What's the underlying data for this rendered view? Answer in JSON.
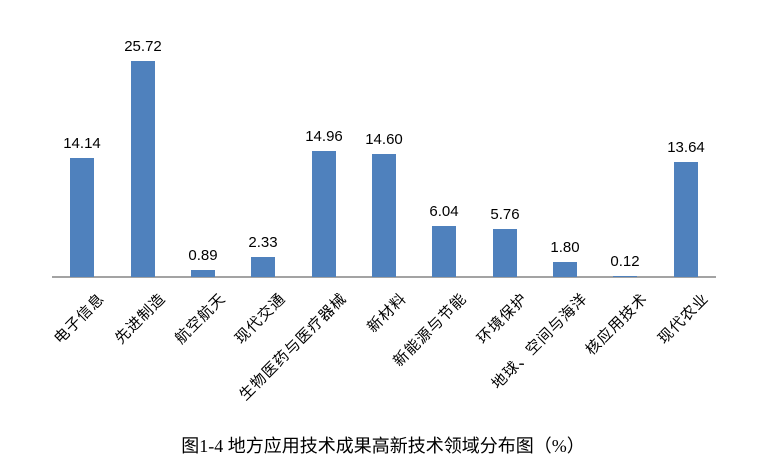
{
  "chart_data": {
    "type": "bar",
    "title": "图1-4 地方应用技术成果高新技术领域分布图（%）",
    "categories": [
      "电子信息",
      "先进制造",
      "航空航天",
      "现代交通",
      "生物医药与医疗器械",
      "新材料",
      "新能源与节能",
      "环境保护",
      "地球、空间与海洋",
      "核应用技术",
      "现代农业"
    ],
    "values": [
      14.14,
      25.72,
      0.89,
      2.33,
      14.96,
      14.6,
      6.04,
      5.76,
      1.8,
      0.12,
      13.64
    ],
    "value_labels": [
      "14.14",
      "25.72",
      "0.89",
      "2.33",
      "14.96",
      "14.60",
      "6.04",
      "5.76",
      "1.80",
      "0.12",
      "13.64"
    ],
    "unit": "%",
    "ylim": [
      0,
      30
    ],
    "grid": false,
    "legend_position": "none",
    "value_labels_shown": true,
    "x_label_rotation_deg": -45,
    "bar_color": "#4F81BD",
    "axis_color": "#A3A3A3",
    "text_color": "#000000"
  }
}
